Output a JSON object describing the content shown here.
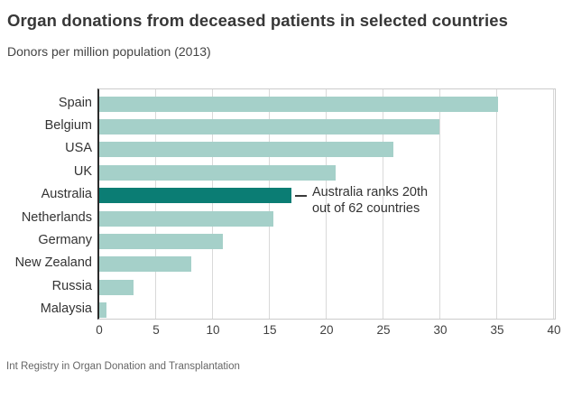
{
  "header": {
    "title": "Organ donations from deceased patients in selected countries",
    "subtitle": "Donors per million population (2013)"
  },
  "footer": {
    "source": "Int Registry in Organ Donation and Transplantation"
  },
  "chart_data": {
    "type": "bar",
    "orientation": "horizontal",
    "title": "Organ donations from deceased patients in selected countries",
    "subtitle": "Donors per million population (2013)",
    "xlabel": "",
    "ylabel": "",
    "categories": [
      "Spain",
      "Belgium",
      "USA",
      "UK",
      "Australia",
      "Netherlands",
      "Germany",
      "New Zealand",
      "Russia",
      "Malaysia"
    ],
    "values": [
      35.1,
      29.9,
      25.9,
      20.8,
      16.9,
      15.3,
      10.9,
      8.1,
      3.0,
      0.6
    ],
    "highlight_index": 4,
    "annotation": {
      "target": "Australia",
      "lines": [
        "Australia ranks 20th",
        "out of 62 countries"
      ]
    },
    "xlim": [
      0,
      40
    ],
    "xticks": [
      0,
      5,
      10,
      15,
      20,
      25,
      30,
      35,
      40
    ],
    "grid": true,
    "legend": "none",
    "colors": {
      "bar": "#a5d0c9",
      "highlight": "#0b7d74",
      "gridline": "#d9d9d9",
      "axis_line": "#2b2b2b",
      "plot_border": "#cccccc",
      "annotation_line": "#3a3a3a",
      "text": "#333333"
    }
  }
}
